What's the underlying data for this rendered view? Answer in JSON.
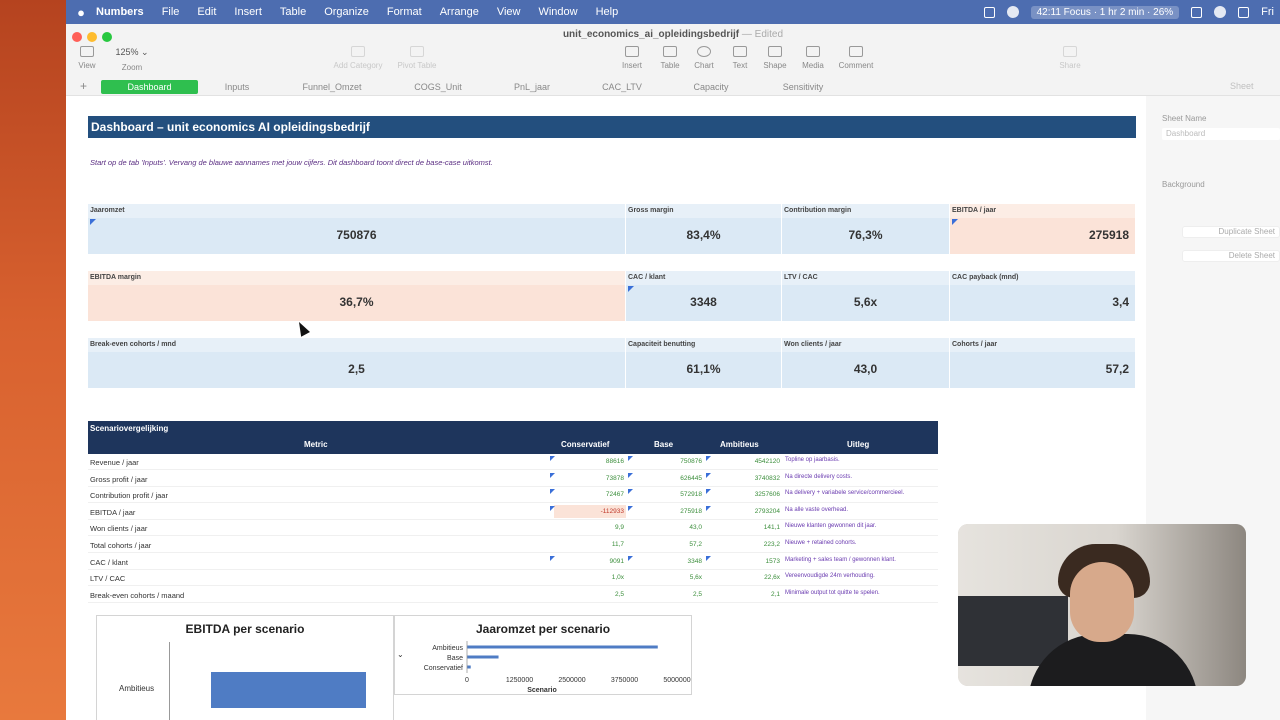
{
  "menubar": {
    "app": "Numbers",
    "items": [
      "File",
      "Edit",
      "Insert",
      "Table",
      "Organize",
      "Format",
      "Arrange",
      "View",
      "Window",
      "Help"
    ],
    "focus": "42:11 Focus · 1 hr 2 min · 26%",
    "clock": "Fri"
  },
  "window": {
    "title": "unit_economics_ai_opleidingsbedrijf",
    "edited": "— Edited",
    "zoom_value": "125%",
    "toolbar": {
      "view": "View",
      "zoom": "Zoom",
      "add_category": "Add Category",
      "pivot_table": "Pivot Table",
      "insert": "Insert",
      "table": "Table",
      "chart": "Chart",
      "text": "Text",
      "shape": "Shape",
      "media": "Media",
      "comment": "Comment",
      "share": "Share"
    }
  },
  "tabs": [
    "Dashboard",
    "Inputs",
    "Funnel_Omzet",
    "COGS_Unit",
    "PnL_jaar",
    "CAC_LTV",
    "Capacity",
    "Sensitivity"
  ],
  "sidebar": {
    "tab": "Sheet",
    "sheet_name_label": "Sheet Name",
    "sheet_name_value": "Dashboard",
    "background_label": "Background",
    "duplicate": "Duplicate Sheet",
    "delete": "Delete Sheet"
  },
  "dashboard": {
    "title": "Dashboard – unit economics AI opleidingsbedrijf",
    "note": "Start op de tab 'Inputs'. Vervang de blauwe aannames met jouw cijfers. Dit dashboard toont direct de base-case uitkomst.",
    "kpi_row1": [
      {
        "label": "Jaaromzet",
        "value": "750876"
      },
      {
        "label": "Gross margin",
        "value": "83,4%"
      },
      {
        "label": "Contribution margin",
        "value": "76,3%"
      },
      {
        "label": "EBITDA / jaar",
        "value": "275918"
      }
    ],
    "kpi_row2": [
      {
        "label": "EBITDA margin",
        "value": "36,7%"
      },
      {
        "label": "CAC / klant",
        "value": "3348"
      },
      {
        "label": "LTV / CAC",
        "value": "5,6x"
      },
      {
        "label": "CAC payback (mnd)",
        "value": "3,4"
      }
    ],
    "kpi_row3": [
      {
        "label": "Break-even cohorts / mnd",
        "value": "2,5"
      },
      {
        "label": "Capaciteit benutting",
        "value": "61,1%"
      },
      {
        "label": "Won clients / jaar",
        "value": "43,0"
      },
      {
        "label": "Cohorts / jaar",
        "value": "57,2"
      }
    ]
  },
  "scenario": {
    "title": "Scenariovergelijking",
    "columns": [
      "Metric",
      "Conservatief",
      "Base",
      "Ambitieus",
      "Uitleg"
    ],
    "rows": [
      {
        "metric": "Revenue / jaar",
        "cons": "88616",
        "base": "750876",
        "amb": "4542120",
        "note": "Topline op jaarbasis."
      },
      {
        "metric": "Gross profit / jaar",
        "cons": "73878",
        "base": "626445",
        "amb": "3740832",
        "note": "Na directe delivery costs."
      },
      {
        "metric": "Contribution profit / jaar",
        "cons": "72467",
        "base": "572918",
        "amb": "3257606",
        "note": "Na delivery + variabele service/commercieel."
      },
      {
        "metric": "EBITDA / jaar",
        "cons": "-112933",
        "base": "275918",
        "amb": "2793204",
        "note": "Na alle vaste overhead."
      },
      {
        "metric": "Won clients / jaar",
        "cons": "9,9",
        "base": "43,0",
        "amb": "141,1",
        "note": "Nieuwe klanten gewonnen dit jaar."
      },
      {
        "metric": "Total cohorts / jaar",
        "cons": "11,7",
        "base": "57,2",
        "amb": "223,2",
        "note": "Nieuwe + retained cohorts."
      },
      {
        "metric": "CAC / klant",
        "cons": "9091",
        "base": "3348",
        "amb": "1573",
        "note": "Marketing + sales team / gewonnen klant."
      },
      {
        "metric": "LTV / CAC",
        "cons": "1,0x",
        "base": "5,6x",
        "amb": "22,6x",
        "note": "Vereenvoudigde 24m verhouding."
      },
      {
        "metric": "Break-even cohorts / maand",
        "cons": "2,5",
        "base": "2,5",
        "amb": "2,1",
        "note": "Minimale output tot quitte te spelen."
      }
    ]
  },
  "charts": {
    "ebitda_title": "EBITDA per scenario",
    "ebitda_visible_category": "Ambitieus",
    "omzet_title": "Jaaromzet per scenario",
    "omzet_xlabel": "Scenario"
  },
  "chart_data": [
    {
      "type": "bar",
      "title": "Jaaromzet per scenario",
      "orientation": "horizontal",
      "categories": [
        "Ambitieus",
        "Base",
        "Conservatief"
      ],
      "values": [
        4542120,
        750876,
        88616
      ],
      "xlabel": "Scenario",
      "ticks": [
        "0",
        "1250000",
        "2500000",
        "3750000",
        "5000000"
      ],
      "xlim": [
        0,
        5000000
      ],
      "color": "#4f7cc4"
    },
    {
      "type": "bar",
      "title": "EBITDA per scenario",
      "orientation": "horizontal",
      "categories": [
        "Ambitieus"
      ],
      "values": [
        2793204
      ],
      "color": "#4f7cc4"
    }
  ]
}
